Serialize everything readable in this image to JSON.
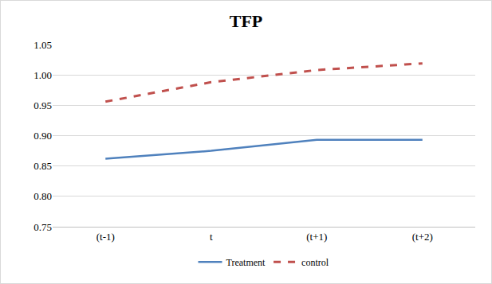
{
  "chart_data": {
    "type": "line",
    "title": "TFP",
    "categories": [
      "(t-1)",
      "t",
      "(t+1)",
      "(t+2)"
    ],
    "series": [
      {
        "name": "Treatment",
        "color": "#4f81bd",
        "line_style": "solid",
        "values": [
          0.862,
          0.875,
          0.893,
          0.893
        ]
      },
      {
        "name": "control",
        "color": "#c0504d",
        "line_style": "dash",
        "values": [
          0.956,
          0.988,
          1.008,
          1.019
        ]
      }
    ],
    "ylim": [
      0.75,
      1.05
    ],
    "yticks": [
      0.75,
      {
        "value": 0.8,
        "label": "0.80"
      },
      0.85,
      {
        "value": 0.9,
        "label": "0.90"
      },
      0.95,
      {
        "value": 1.0,
        "label": "1.00"
      },
      1.05
    ],
    "grid": true,
    "legend": "bottom"
  }
}
